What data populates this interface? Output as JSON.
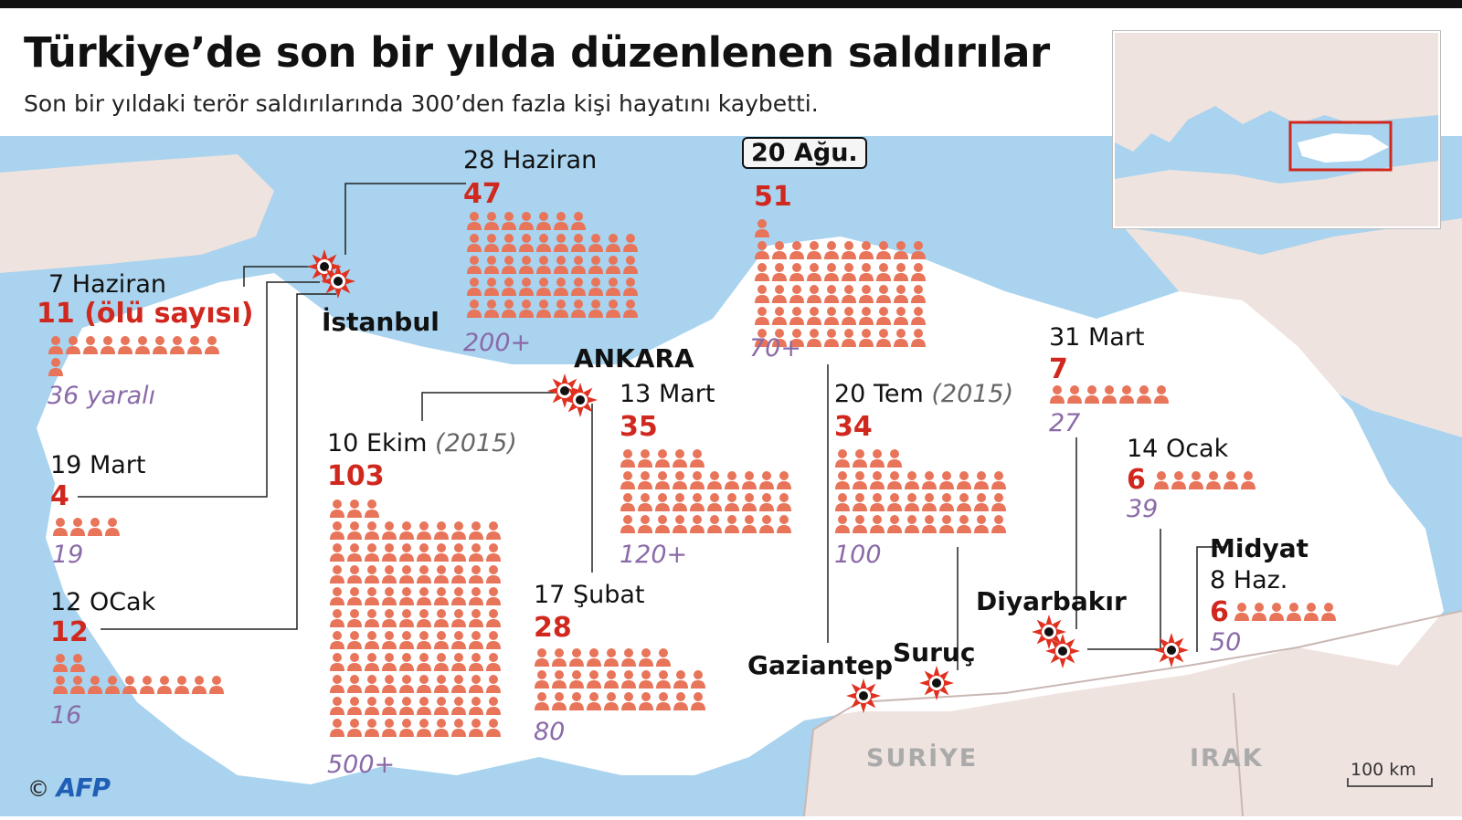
{
  "title": "Türkiye’de son bir yılda düzenlenen saldırılar",
  "subtitle": "Son bir yıldaki terör saldırılarında 300’den fazla kişi hayatını kaybetti.",
  "colors": {
    "sea": "#a9d3ee",
    "turkey": "#ffffff",
    "neighbors": "#efe3df",
    "icon": "#e8745a",
    "dead": "#d0281e",
    "injured": "#8a6aa8"
  },
  "cities": {
    "istanbul": "İstanbul",
    "ankara": "ANKARA",
    "gaziantep": "Gaziantep",
    "suruc": "Suruç",
    "diyarbakir": "Diyarbakır",
    "midyat": "Midyat"
  },
  "countries": {
    "syria": "SURİYE",
    "iraq": "IRAK"
  },
  "attacks": [
    {
      "id": "jun7",
      "date": "7 Haziran",
      "dead_label": "11 (ölü sayısı)",
      "dead": 11,
      "injured": "36 yaralı"
    },
    {
      "id": "mar19",
      "date": "19 Mart",
      "dead_label": "4",
      "dead": 4,
      "injured": "19"
    },
    {
      "id": "jan12",
      "date": "12 OCak",
      "dead_label": "12",
      "dead": 12,
      "injured": "16"
    },
    {
      "id": "jun28",
      "date": "28 Haziran",
      "dead_label": "47",
      "dead": 47,
      "injured": "200+"
    },
    {
      "id": "oct10",
      "date": "10 Ekim",
      "year": "(2015)",
      "dead_label": "103",
      "dead": 103,
      "injured": "500+"
    },
    {
      "id": "mar13",
      "date": "13 Mart",
      "dead_label": "35",
      "dead": 35,
      "injured": "120+"
    },
    {
      "id": "feb17",
      "date": "17 Şubat",
      "dead_label": "28",
      "dead": 28,
      "injured": "80"
    },
    {
      "id": "aug20",
      "date": "20 Ağu.",
      "dead_label": "51",
      "dead": 51,
      "injured": "70+"
    },
    {
      "id": "jul20",
      "date": "20 Tem",
      "year": "(2015)",
      "dead_label": "34",
      "dead": 34,
      "injured": "100"
    },
    {
      "id": "mar31",
      "date": "31 Mart",
      "dead_label": "7",
      "dead": 7,
      "injured": "27"
    },
    {
      "id": "jan14",
      "date": "14 Ocak",
      "dead_label": "6",
      "dead": 6,
      "injured": "39"
    },
    {
      "id": "jun8",
      "date": "8 Haz.",
      "dead_label": "6",
      "dead": 6,
      "injured": "50"
    }
  ],
  "scale": "100 km",
  "credit": {
    "symbol": "©",
    "brand": "AFP"
  }
}
